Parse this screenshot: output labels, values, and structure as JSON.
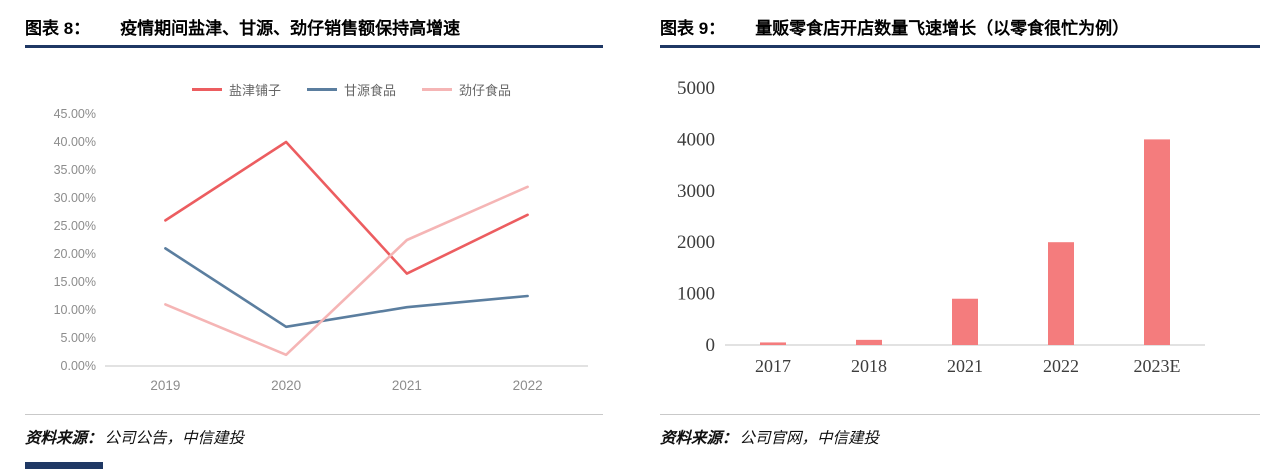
{
  "page": {
    "accent_navy": "#1F3864",
    "divider_gray": "#C9C9C9"
  },
  "left_panel": {
    "figure_label": "图表 8：",
    "title": "疫情期间盐津、甘源、劲仔销售额保持高增速",
    "source_label": "资料来源：",
    "source_text": "公司公告，中信建投"
  },
  "right_panel": {
    "figure_label": "图表 9：",
    "title": "量贩零食店开店数量飞速增长（以零食很忙为例）",
    "source_label": "资料来源：",
    "source_text": "公司官网，中信建投"
  },
  "chart_data": [
    {
      "type": "line",
      "title": "疫情期间盐津、甘源、劲仔销售额保持高增速",
      "x": [
        "2019",
        "2020",
        "2021",
        "2022"
      ],
      "series": [
        {
          "name": "盐津铺子",
          "color": "#EC5D60",
          "values": [
            26,
            40,
            16.5,
            27
          ]
        },
        {
          "name": "甘源食品",
          "color": "#5B7E9F",
          "values": [
            21,
            7,
            10.5,
            12.5
          ]
        },
        {
          "name": "劲仔食品",
          "color": "#F5B5B5",
          "values": [
            11,
            2,
            22.5,
            32
          ]
        }
      ],
      "ylim": [
        0,
        45
      ],
      "ytick_step": 5,
      "ytick_format": "percent2",
      "legend_position": "top",
      "grid": false
    },
    {
      "type": "bar",
      "title": "量贩零食店开店数量飞速增长（以零食很忙为例）",
      "categories": [
        "2017",
        "2018",
        "2021",
        "2022",
        "2023E"
      ],
      "values": [
        50,
        100,
        900,
        2000,
        4000
      ],
      "bar_color": "#F47C7D",
      "ylim": [
        0,
        5000
      ],
      "ytick_step": 1000,
      "grid": false,
      "legend_position": "none"
    }
  ]
}
